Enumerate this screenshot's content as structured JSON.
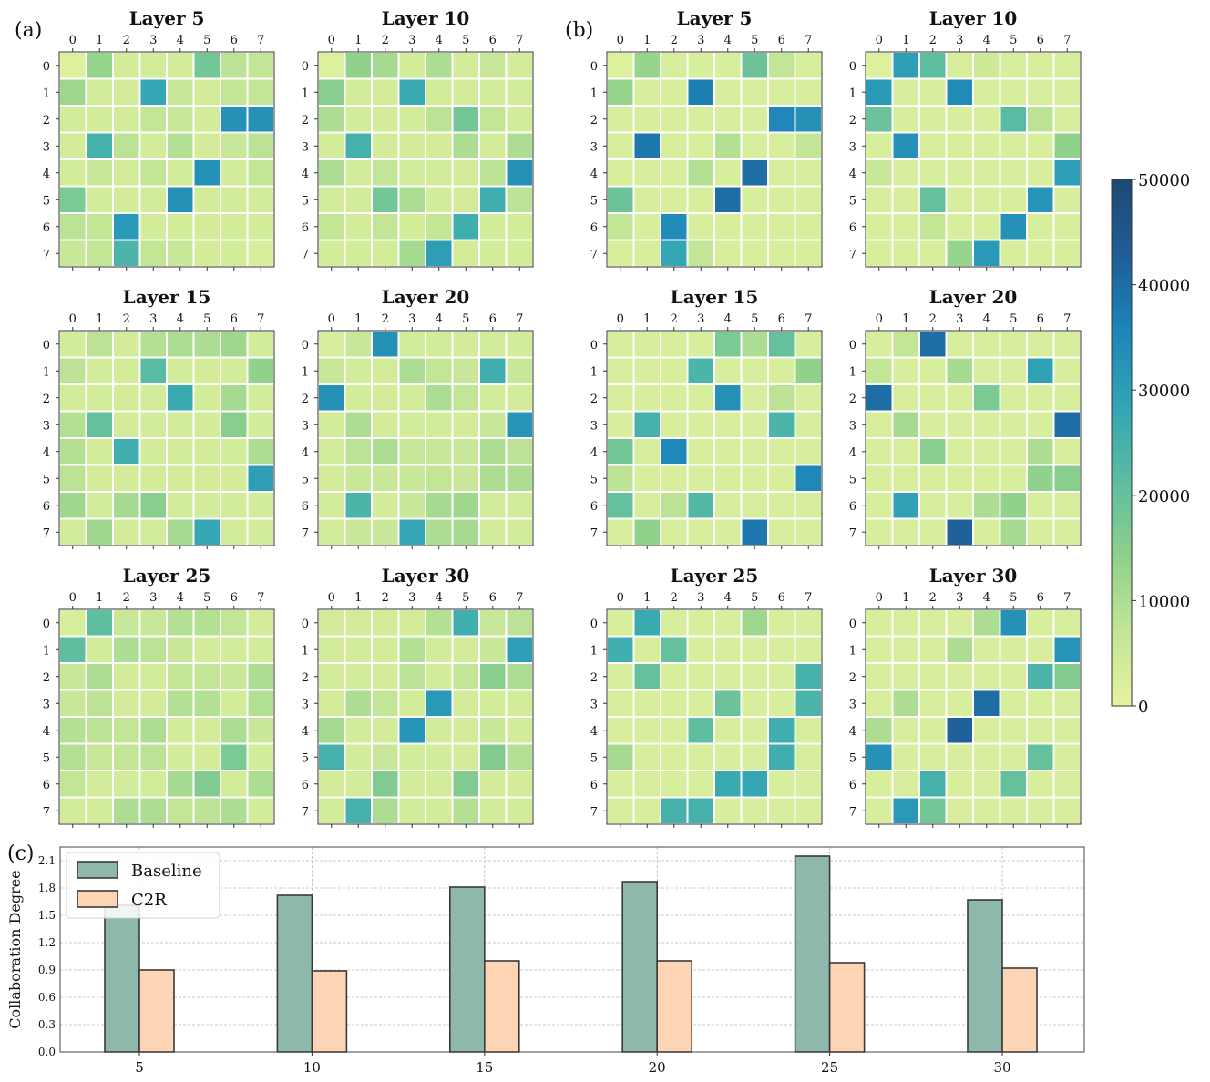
{
  "panel_labels": [
    "(a)",
    "(b)",
    "(c)"
  ],
  "colorbar": {
    "ticks": [
      "50000",
      "40000",
      "30000",
      "20000",
      "10000",
      "0"
    ],
    "min": 0,
    "max": 50000,
    "colors": [
      "#e6f4a0",
      "#c2e596",
      "#8ed08b",
      "#5bbda0",
      "#31a4b6",
      "#1d85b8",
      "#1f5d96",
      "#1e4a73"
    ]
  },
  "chart_data": [
    {
      "type": "heatmap",
      "group": "(a)",
      "title": "Layer 5",
      "tick_labels": [
        "0",
        "1",
        "2",
        "3",
        "4",
        "5",
        "6",
        "7"
      ],
      "values": [
        [
          2000,
          13000,
          4000,
          4000,
          4000,
          18000,
          8000,
          7000
        ],
        [
          12000,
          4000,
          4000,
          28000,
          6000,
          4000,
          7000,
          7000
        ],
        [
          4000,
          4000,
          4000,
          7000,
          6000,
          4000,
          33000,
          33000
        ],
        [
          4000,
          25000,
          8000,
          4000,
          9000,
          4000,
          6000,
          8000
        ],
        [
          4000,
          6000,
          4000,
          7000,
          4000,
          33000,
          4000,
          7000
        ],
        [
          17000,
          4000,
          4000,
          4000,
          33000,
          4000,
          4000,
          4000
        ],
        [
          8000,
          7000,
          31000,
          4000,
          4000,
          4000,
          4000,
          4000
        ],
        [
          6000,
          7000,
          24000,
          7000,
          6000,
          4000,
          4000,
          3000
        ]
      ]
    },
    {
      "type": "heatmap",
      "group": "(a)",
      "title": "Layer 10",
      "tick_labels": [
        "0",
        "1",
        "2",
        "3",
        "4",
        "5",
        "6",
        "7"
      ],
      "values": [
        [
          2000,
          14000,
          11000,
          4000,
          10000,
          4000,
          6000,
          4000
        ],
        [
          15000,
          4000,
          4000,
          27000,
          4000,
          4000,
          4000,
          4000
        ],
        [
          10000,
          4000,
          4000,
          4000,
          8000,
          18000,
          7000,
          4000
        ],
        [
          4000,
          25000,
          4000,
          4000,
          4000,
          10000,
          4000,
          10000
        ],
        [
          10000,
          4000,
          7000,
          4000,
          4000,
          4000,
          8000,
          33000
        ],
        [
          4000,
          4000,
          18000,
          10000,
          4000,
          4000,
          26000,
          8000
        ],
        [
          7000,
          4000,
          7000,
          4000,
          7000,
          26000,
          4000,
          4000
        ],
        [
          4000,
          4000,
          4000,
          11000,
          30000,
          4000,
          4000,
          4000
        ]
      ]
    },
    {
      "type": "heatmap",
      "group": "(a)",
      "title": "Layer 15",
      "tick_labels": [
        "0",
        "1",
        "2",
        "3",
        "4",
        "5",
        "6",
        "7"
      ],
      "values": [
        [
          4000,
          8000,
          4000,
          9000,
          10000,
          10000,
          12000,
          4000
        ],
        [
          8000,
          4000,
          4000,
          22000,
          4000,
          4000,
          4000,
          14000
        ],
        [
          4000,
          4000,
          4000,
          4000,
          27000,
          4000,
          11000,
          4000
        ],
        [
          9000,
          20000,
          4000,
          4000,
          4000,
          4000,
          15000,
          4000
        ],
        [
          9000,
          4000,
          26000,
          4000,
          4000,
          4000,
          4000,
          10000
        ],
        [
          8000,
          4000,
          4000,
          4000,
          4000,
          4000,
          4000,
          30000
        ],
        [
          12000,
          4000,
          11000,
          15000,
          4000,
          4000,
          4000,
          4000
        ],
        [
          4000,
          12000,
          4000,
          4000,
          11000,
          28000,
          4000,
          4000
        ]
      ]
    },
    {
      "type": "heatmap",
      "group": "(a)",
      "title": "Layer 20",
      "tick_labels": [
        "0",
        "1",
        "2",
        "3",
        "4",
        "5",
        "6",
        "7"
      ],
      "values": [
        [
          3000,
          6000,
          33000,
          4000,
          4000,
          4000,
          4000,
          4000
        ],
        [
          6000,
          4000,
          4000,
          10000,
          7000,
          6000,
          26000,
          6000
        ],
        [
          33000,
          4000,
          4000,
          4000,
          10000,
          7000,
          4000,
          4000
        ],
        [
          4000,
          10000,
          4000,
          4000,
          4000,
          4000,
          6000,
          32000
        ],
        [
          4000,
          8000,
          10000,
          6000,
          6000,
          6000,
          10000,
          8000
        ],
        [
          4000,
          6000,
          6000,
          6000,
          7000,
          6000,
          10000,
          10000
        ],
        [
          4000,
          24000,
          4000,
          6000,
          11000,
          12000,
          4000,
          4000
        ],
        [
          4000,
          6000,
          6000,
          28000,
          10000,
          11000,
          4000,
          4000
        ]
      ]
    },
    {
      "type": "heatmap",
      "group": "(a)",
      "title": "Layer 25",
      "tick_labels": [
        "0",
        "1",
        "2",
        "3",
        "4",
        "5",
        "6",
        "7"
      ],
      "values": [
        [
          3000,
          21000,
          6000,
          6000,
          9000,
          9000,
          7000,
          4000
        ],
        [
          21000,
          4000,
          10000,
          8000,
          6000,
          4000,
          4000,
          4000
        ],
        [
          6000,
          10000,
          4000,
          4000,
          7000,
          7000,
          6000,
          10000
        ],
        [
          6000,
          8000,
          4000,
          4000,
          9000,
          9000,
          4000,
          9000
        ],
        [
          9000,
          8000,
          7000,
          10000,
          4000,
          4000,
          10000,
          6000
        ],
        [
          9000,
          6000,
          7000,
          8000,
          4000,
          4000,
          17000,
          4000
        ],
        [
          7000,
          4000,
          4000,
          4000,
          11000,
          16000,
          4000,
          10000
        ],
        [
          4000,
          4000,
          10000,
          10000,
          7000,
          8000,
          10000,
          4000
        ]
      ]
    },
    {
      "type": "heatmap",
      "group": "(a)",
      "title": "Layer 30",
      "tick_labels": [
        "0",
        "1",
        "2",
        "3",
        "4",
        "5",
        "6",
        "7"
      ],
      "values": [
        [
          4000,
          4000,
          4000,
          4000,
          9000,
          26000,
          6000,
          8000
        ],
        [
          4000,
          4000,
          4000,
          9000,
          4000,
          4000,
          6000,
          30000
        ],
        [
          4000,
          4000,
          4000,
          8000,
          4000,
          7000,
          15000,
          10000
        ],
        [
          4000,
          10000,
          7000,
          4000,
          31000,
          4000,
          4000,
          4000
        ],
        [
          11000,
          4000,
          4000,
          32000,
          4000,
          4000,
          6000,
          4000
        ],
        [
          25000,
          4000,
          6000,
          4000,
          4000,
          4000,
          16000,
          9000
        ],
        [
          4000,
          4000,
          16000,
          4000,
          4000,
          16000,
          4000,
          4000
        ],
        [
          4000,
          25000,
          10000,
          4000,
          4000,
          9000,
          4000,
          4000
        ]
      ]
    },
    {
      "type": "heatmap",
      "group": "(b)",
      "title": "Layer 5",
      "tick_labels": [
        "0",
        "1",
        "2",
        "3",
        "4",
        "5",
        "6",
        "7"
      ],
      "values": [
        [
          2000,
          13000,
          3000,
          3000,
          3000,
          19000,
          7000,
          3000
        ],
        [
          13000,
          3000,
          3000,
          37000,
          3000,
          3000,
          3000,
          3000
        ],
        [
          3000,
          3000,
          3000,
          3000,
          3000,
          3000,
          35000,
          33000
        ],
        [
          3000,
          38000,
          3000,
          3000,
          9000,
          3000,
          3000,
          7000
        ],
        [
          3000,
          3000,
          3000,
          9000,
          3000,
          40000,
          3000,
          3000
        ],
        [
          19000,
          3000,
          3000,
          3000,
          40000,
          3000,
          3000,
          3000
        ],
        [
          7000,
          3000,
          34000,
          3000,
          3000,
          3000,
          3000,
          3000
        ],
        [
          3000,
          3000,
          28000,
          7000,
          3000,
          3000,
          3000,
          3000
        ]
      ]
    },
    {
      "type": "heatmap",
      "group": "(b)",
      "title": "Layer 10",
      "tick_labels": [
        "0",
        "1",
        "2",
        "3",
        "4",
        "5",
        "6",
        "7"
      ],
      "values": [
        [
          2000,
          30000,
          21000,
          3000,
          5000,
          3000,
          3000,
          3000
        ],
        [
          31000,
          3000,
          3000,
          34000,
          3000,
          3000,
          3000,
          3000
        ],
        [
          19000,
          3000,
          3000,
          3000,
          3000,
          22000,
          8000,
          3000
        ],
        [
          3000,
          33000,
          3000,
          3000,
          3000,
          3000,
          3000,
          14000
        ],
        [
          6000,
          3000,
          3000,
          3000,
          3000,
          3000,
          3000,
          30000
        ],
        [
          3000,
          3000,
          20000,
          3000,
          3000,
          3000,
          32000,
          3000
        ],
        [
          3000,
          3000,
          7000,
          3000,
          3000,
          33000,
          3000,
          3000
        ],
        [
          3000,
          3000,
          3000,
          13000,
          31000,
          3000,
          3000,
          3000
        ]
      ]
    },
    {
      "type": "heatmap",
      "group": "(b)",
      "title": "Layer 15",
      "tick_labels": [
        "0",
        "1",
        "2",
        "3",
        "4",
        "5",
        "6",
        "7"
      ],
      "values": [
        [
          3000,
          3000,
          3000,
          3000,
          17000,
          10000,
          20000,
          3000
        ],
        [
          3000,
          3000,
          3000,
          24000,
          3000,
          3000,
          3000,
          14000
        ],
        [
          3000,
          3000,
          3000,
          3000,
          33000,
          3000,
          8000,
          3000
        ],
        [
          3000,
          25000,
          3000,
          3000,
          3000,
          3000,
          24000,
          3000
        ],
        [
          18000,
          3000,
          35000,
          3000,
          3000,
          3000,
          3000,
          3000
        ],
        [
          8000,
          3000,
          3000,
          3000,
          3000,
          3000,
          3000,
          35000
        ],
        [
          20000,
          3000,
          8000,
          23000,
          3000,
          3000,
          3000,
          3000
        ],
        [
          3000,
          14000,
          3000,
          3000,
          3000,
          38000,
          3000,
          3000
        ]
      ]
    },
    {
      "type": "heatmap",
      "group": "(b)",
      "title": "Layer 20",
      "tick_labels": [
        "0",
        "1",
        "2",
        "3",
        "4",
        "5",
        "6",
        "7"
      ],
      "values": [
        [
          3000,
          7000,
          40000,
          3000,
          3000,
          3000,
          3000,
          3000
        ],
        [
          7000,
          3000,
          3000,
          11000,
          3000,
          3000,
          29000,
          3000
        ],
        [
          40000,
          3000,
          3000,
          3000,
          17000,
          3000,
          3000,
          3000
        ],
        [
          3000,
          11000,
          3000,
          3000,
          3000,
          3000,
          3000,
          40000
        ],
        [
          3000,
          3000,
          15000,
          3000,
          3000,
          3000,
          10000,
          3000
        ],
        [
          3000,
          3000,
          3000,
          3000,
          3000,
          3000,
          14000,
          15000
        ],
        [
          3000,
          29000,
          3000,
          3000,
          10000,
          14000,
          3000,
          3000
        ],
        [
          3000,
          3000,
          3000,
          42000,
          3000,
          11000,
          3000,
          3000
        ]
      ]
    },
    {
      "type": "heatmap",
      "group": "(b)",
      "title": "Layer 25",
      "tick_labels": [
        "0",
        "1",
        "2",
        "3",
        "4",
        "5",
        "6",
        "7"
      ],
      "values": [
        [
          3000,
          27000,
          3000,
          3000,
          3000,
          12000,
          3000,
          3000
        ],
        [
          26000,
          3000,
          20000,
          3000,
          3000,
          3000,
          3000,
          3000
        ],
        [
          3000,
          20000,
          3000,
          3000,
          3000,
          3000,
          3000,
          25000
        ],
        [
          3000,
          3000,
          3000,
          3000,
          19000,
          3000,
          3000,
          24000
        ],
        [
          3000,
          3000,
          3000,
          21000,
          3000,
          3000,
          26000,
          3000
        ],
        [
          11000,
          3000,
          3000,
          3000,
          3000,
          3000,
          26000,
          3000
        ],
        [
          3000,
          3000,
          3000,
          3000,
          27000,
          28000,
          3000,
          3000
        ],
        [
          3000,
          3000,
          25000,
          25000,
          3000,
          3000,
          3000,
          3000
        ]
      ]
    },
    {
      "type": "heatmap",
      "group": "(b)",
      "title": "Layer 30",
      "tick_labels": [
        "0",
        "1",
        "2",
        "3",
        "4",
        "5",
        "6",
        "7"
      ],
      "values": [
        [
          3000,
          3000,
          3000,
          3000,
          10000,
          33000,
          3000,
          3000
        ],
        [
          3000,
          3000,
          3000,
          10000,
          3000,
          3000,
          3000,
          32000
        ],
        [
          3000,
          3000,
          3000,
          3000,
          3000,
          3000,
          24000,
          16000
        ],
        [
          3000,
          10000,
          3000,
          3000,
          40000,
          3000,
          3000,
          3000
        ],
        [
          10000,
          3000,
          3000,
          42000,
          3000,
          3000,
          3000,
          3000
        ],
        [
          33000,
          3000,
          3000,
          3000,
          3000,
          3000,
          20000,
          3000
        ],
        [
          3000,
          3000,
          25000,
          3000,
          3000,
          20000,
          3000,
          3000
        ],
        [
          3000,
          31000,
          18000,
          3000,
          3000,
          3000,
          3000,
          3000
        ]
      ]
    },
    {
      "type": "bar",
      "group": "(c)",
      "categories": [
        "5",
        "10",
        "15",
        "20",
        "25",
        "30"
      ],
      "series": [
        {
          "name": "Baseline",
          "values": [
            1.61,
            1.72,
            1.81,
            1.87,
            2.15,
            1.67
          ],
          "color": "#8fb8ac"
        },
        {
          "name": "C2R",
          "values": [
            0.9,
            0.89,
            1.0,
            1.0,
            0.98,
            0.92
          ],
          "color": "#fdd5b4"
        }
      ],
      "ylabel": "Collaboration Degree",
      "yticks": [
        "0.0",
        "0.3",
        "0.6",
        "0.9",
        "1.2",
        "1.5",
        "1.8",
        "2.1"
      ],
      "ylim": [
        0,
        2.25
      ],
      "grid": true,
      "legend": "top-left"
    }
  ]
}
